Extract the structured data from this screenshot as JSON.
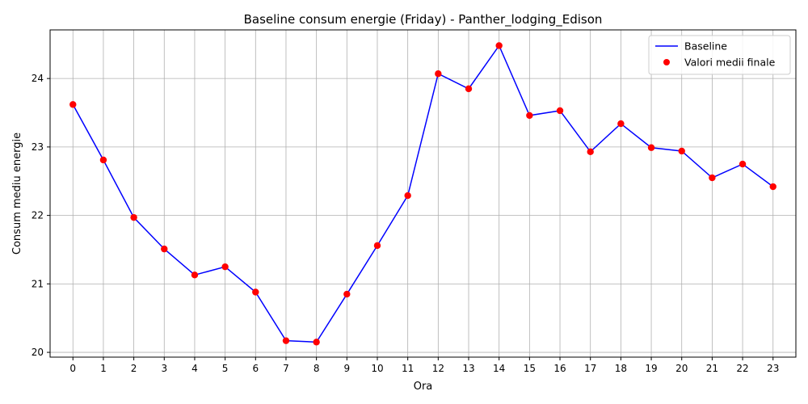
{
  "chart_data": {
    "type": "line",
    "title": "Baseline consum energie (Friday) - Panther_lodging_Edison",
    "xlabel": "Ora",
    "ylabel": "Consum mediu energie",
    "x": [
      0,
      1,
      2,
      3,
      4,
      5,
      6,
      7,
      8,
      9,
      10,
      11,
      12,
      13,
      14,
      15,
      16,
      17,
      18,
      19,
      20,
      21,
      22,
      23
    ],
    "x_ticks": [
      "0",
      "1",
      "2",
      "3",
      "4",
      "5",
      "6",
      "7",
      "8",
      "9",
      "10",
      "11",
      "12",
      "13",
      "14",
      "15",
      "16",
      "17",
      "18",
      "19",
      "20",
      "21",
      "22",
      "23"
    ],
    "y_ticks": [
      "20",
      "21",
      "22",
      "23",
      "24"
    ],
    "xlim": [
      -0.75,
      23.75
    ],
    "ylim": [
      19.93,
      24.71
    ],
    "grid": true,
    "legend_position": "top-right",
    "series": [
      {
        "name": "Baseline",
        "kind": "line",
        "color": "#0000ff",
        "values": [
          23.62,
          22.81,
          21.97,
          21.51,
          21.13,
          21.25,
          20.88,
          20.17,
          20.15,
          20.85,
          21.56,
          22.29,
          24.07,
          23.85,
          24.48,
          23.46,
          23.53,
          22.93,
          23.34,
          22.99,
          22.94,
          22.55,
          22.75,
          22.42
        ]
      },
      {
        "name": "Valori medii finale",
        "kind": "scatter",
        "color": "#ff0000",
        "values": [
          23.62,
          22.81,
          21.97,
          21.51,
          21.13,
          21.25,
          20.88,
          20.17,
          20.15,
          20.85,
          21.56,
          22.29,
          24.07,
          23.85,
          24.48,
          23.46,
          23.53,
          22.93,
          23.34,
          22.99,
          22.94,
          22.55,
          22.75,
          22.42
        ]
      }
    ]
  }
}
